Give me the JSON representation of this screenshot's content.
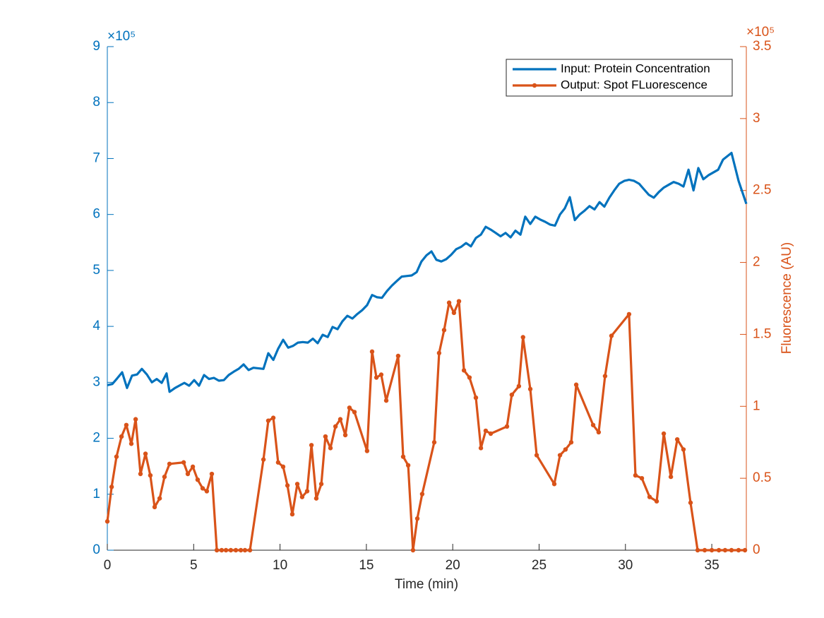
{
  "chart_data": {
    "type": "line",
    "x_label": "Time (min)",
    "y2_label": "Fluorescence (AU)",
    "y_exponent": "×10⁵",
    "y2_exponent": "×10⁵",
    "xlim": [
      0,
      37
    ],
    "xticks": [
      0,
      5,
      10,
      15,
      20,
      25,
      30,
      35
    ],
    "ylim": [
      0,
      9
    ],
    "yticks": [
      0,
      1,
      2,
      3,
      4,
      5,
      6,
      7,
      8,
      9
    ],
    "y2lim": [
      0,
      3.5
    ],
    "y2ticks": [
      0,
      0.5,
      1,
      1.5,
      2,
      2.5,
      3,
      3.5
    ],
    "legend": "upper right",
    "series": [
      {
        "name": "Input: Protein Concentration",
        "color": "#0072BD",
        "axis": "y",
        "markers": false,
        "x": [
          0,
          0.29,
          0.57,
          0.86,
          1.14,
          1.43,
          1.72,
          2.0,
          2.29,
          2.58,
          2.86,
          3.15,
          3.43,
          3.6,
          3.92,
          4.46,
          4.74,
          5.03,
          5.31,
          5.6,
          5.89,
          6.17,
          6.46,
          6.75,
          7.03,
          7.32,
          7.6,
          7.89,
          8.18,
          8.46,
          9.04,
          9.32,
          9.61,
          9.89,
          10.18,
          10.47,
          10.75,
          11.04,
          11.32,
          11.61,
          11.9,
          12.18,
          12.47,
          12.76,
          13.04,
          13.33,
          13.61,
          13.9,
          14.19,
          14.47,
          14.76,
          15.04,
          15.33,
          15.62,
          15.9,
          16.19,
          16.48,
          16.76,
          17.05,
          17.33,
          17.62,
          17.91,
          18.19,
          18.48,
          18.77,
          19.05,
          19.34,
          19.62,
          19.91,
          20.2,
          20.48,
          20.77,
          21.05,
          21.34,
          21.63,
          21.91,
          22.2,
          22.49,
          22.77,
          23.06,
          23.35,
          23.63,
          23.92,
          24.2,
          24.49,
          24.78,
          25.06,
          25.35,
          25.63,
          25.92,
          26.21,
          26.49,
          26.78,
          27.07,
          27.35,
          27.64,
          27.92,
          28.21,
          28.5,
          28.78,
          29.07,
          29.35,
          29.64,
          29.93,
          30.21,
          30.5,
          30.79,
          31.07,
          31.36,
          31.64,
          31.93,
          32.22,
          32.5,
          32.79,
          33.08,
          33.36,
          33.65,
          33.94,
          34.22,
          34.51,
          34.8,
          35.08,
          35.37,
          35.65,
          36.14,
          36.55,
          37
        ],
        "values": [
          2.95,
          2.97,
          3.07,
          3.18,
          2.9,
          3.12,
          3.14,
          3.24,
          3.14,
          3.0,
          3.06,
          2.99,
          3.16,
          2.83,
          2.9,
          2.99,
          2.94,
          3.04,
          2.94,
          3.13,
          3.06,
          3.08,
          3.03,
          3.04,
          3.13,
          3.19,
          3.24,
          3.32,
          3.22,
          3.26,
          3.24,
          3.52,
          3.4,
          3.6,
          3.76,
          3.62,
          3.65,
          3.71,
          3.72,
          3.71,
          3.78,
          3.7,
          3.85,
          3.81,
          3.99,
          3.95,
          4.09,
          4.19,
          4.14,
          4.22,
          4.29,
          4.38,
          4.56,
          4.52,
          4.51,
          4.63,
          4.73,
          4.81,
          4.89,
          4.9,
          4.91,
          4.97,
          5.16,
          5.27,
          5.34,
          5.19,
          5.16,
          5.2,
          5.28,
          5.38,
          5.42,
          5.49,
          5.43,
          5.58,
          5.64,
          5.78,
          5.73,
          5.67,
          5.61,
          5.67,
          5.59,
          5.71,
          5.64,
          5.96,
          5.83,
          5.96,
          5.91,
          5.87,
          5.82,
          5.8,
          6.0,
          6.11,
          6.31,
          5.9,
          6.0,
          6.07,
          6.15,
          6.09,
          6.22,
          6.14,
          6.3,
          6.43,
          6.55,
          6.6,
          6.62,
          6.6,
          6.55,
          6.45,
          6.35,
          6.3,
          6.4,
          6.48,
          6.53,
          6.58,
          6.55,
          6.5,
          6.8,
          6.43,
          6.83,
          6.63,
          6.7,
          6.75,
          6.8,
          6.98,
          7.1,
          6.6,
          6.19
        ]
      },
      {
        "name": "Output: Spot FLuorescence",
        "color": "#D95319",
        "axis": "y2",
        "markers": true,
        "x": [
          0,
          0.25,
          0.53,
          0.82,
          1.1,
          1.39,
          1.64,
          1.92,
          2.21,
          2.49,
          2.74,
          3.03,
          3.31,
          3.6,
          4.42,
          4.66,
          4.95,
          5.23,
          5.52,
          5.76,
          6.05,
          6.34,
          6.62,
          6.87,
          7.15,
          7.44,
          7.73,
          7.97,
          8.26,
          9.04,
          9.32,
          9.61,
          9.89,
          10.18,
          10.43,
          10.71,
          11.0,
          11.28,
          11.57,
          11.82,
          12.1,
          12.39,
          12.63,
          12.92,
          13.21,
          13.49,
          13.78,
          14.02,
          14.31,
          15.04,
          15.33,
          15.58,
          15.86,
          16.15,
          16.84,
          17.13,
          17.42,
          17.7,
          17.95,
          18.23,
          18.93,
          19.21,
          19.5,
          19.79,
          20.07,
          20.36,
          20.65,
          20.97,
          21.34,
          21.63,
          21.91,
          22.2,
          23.14,
          23.42,
          23.83,
          24.07,
          24.49,
          24.86,
          25.88,
          26.21,
          26.53,
          26.86,
          27.15,
          28.13,
          28.45,
          28.82,
          29.19,
          30.21,
          30.58,
          30.95,
          31.4,
          31.81,
          32.22,
          32.63,
          33.0,
          33.36,
          33.77,
          34.18,
          34.59,
          35.0,
          35.41,
          35.77,
          36.14,
          36.55,
          36.92
        ],
        "values": [
          0.2,
          0.44,
          0.65,
          0.79,
          0.87,
          0.74,
          0.91,
          0.53,
          0.67,
          0.52,
          0.3,
          0.36,
          0.51,
          0.6,
          0.61,
          0.53,
          0.58,
          0.49,
          0.43,
          0.41,
          0.53,
          0,
          0,
          0,
          0,
          0,
          0,
          0,
          0,
          0.63,
          0.9,
          0.92,
          0.61,
          0.58,
          0.45,
          0.25,
          0.46,
          0.37,
          0.41,
          0.73,
          0.36,
          0.46,
          0.79,
          0.71,
          0.86,
          0.91,
          0.8,
          0.99,
          0.96,
          0.69,
          1.38,
          1.2,
          1.22,
          1.04,
          1.35,
          0.65,
          0.59,
          0,
          0.22,
          0.39,
          0.75,
          1.37,
          1.53,
          1.72,
          1.65,
          1.73,
          1.25,
          1.2,
          1.06,
          0.71,
          0.83,
          0.81,
          0.86,
          1.08,
          1.14,
          1.48,
          1.12,
          0.66,
          0.46,
          0.66,
          0.7,
          0.75,
          1.15,
          0.87,
          0.82,
          1.21,
          1.49,
          1.64,
          0.52,
          0.5,
          0.37,
          0.34,
          0.81,
          0.51,
          0.77,
          0.7,
          0.33,
          0,
          0,
          0,
          0,
          0,
          0,
          0,
          0
        ]
      }
    ]
  }
}
